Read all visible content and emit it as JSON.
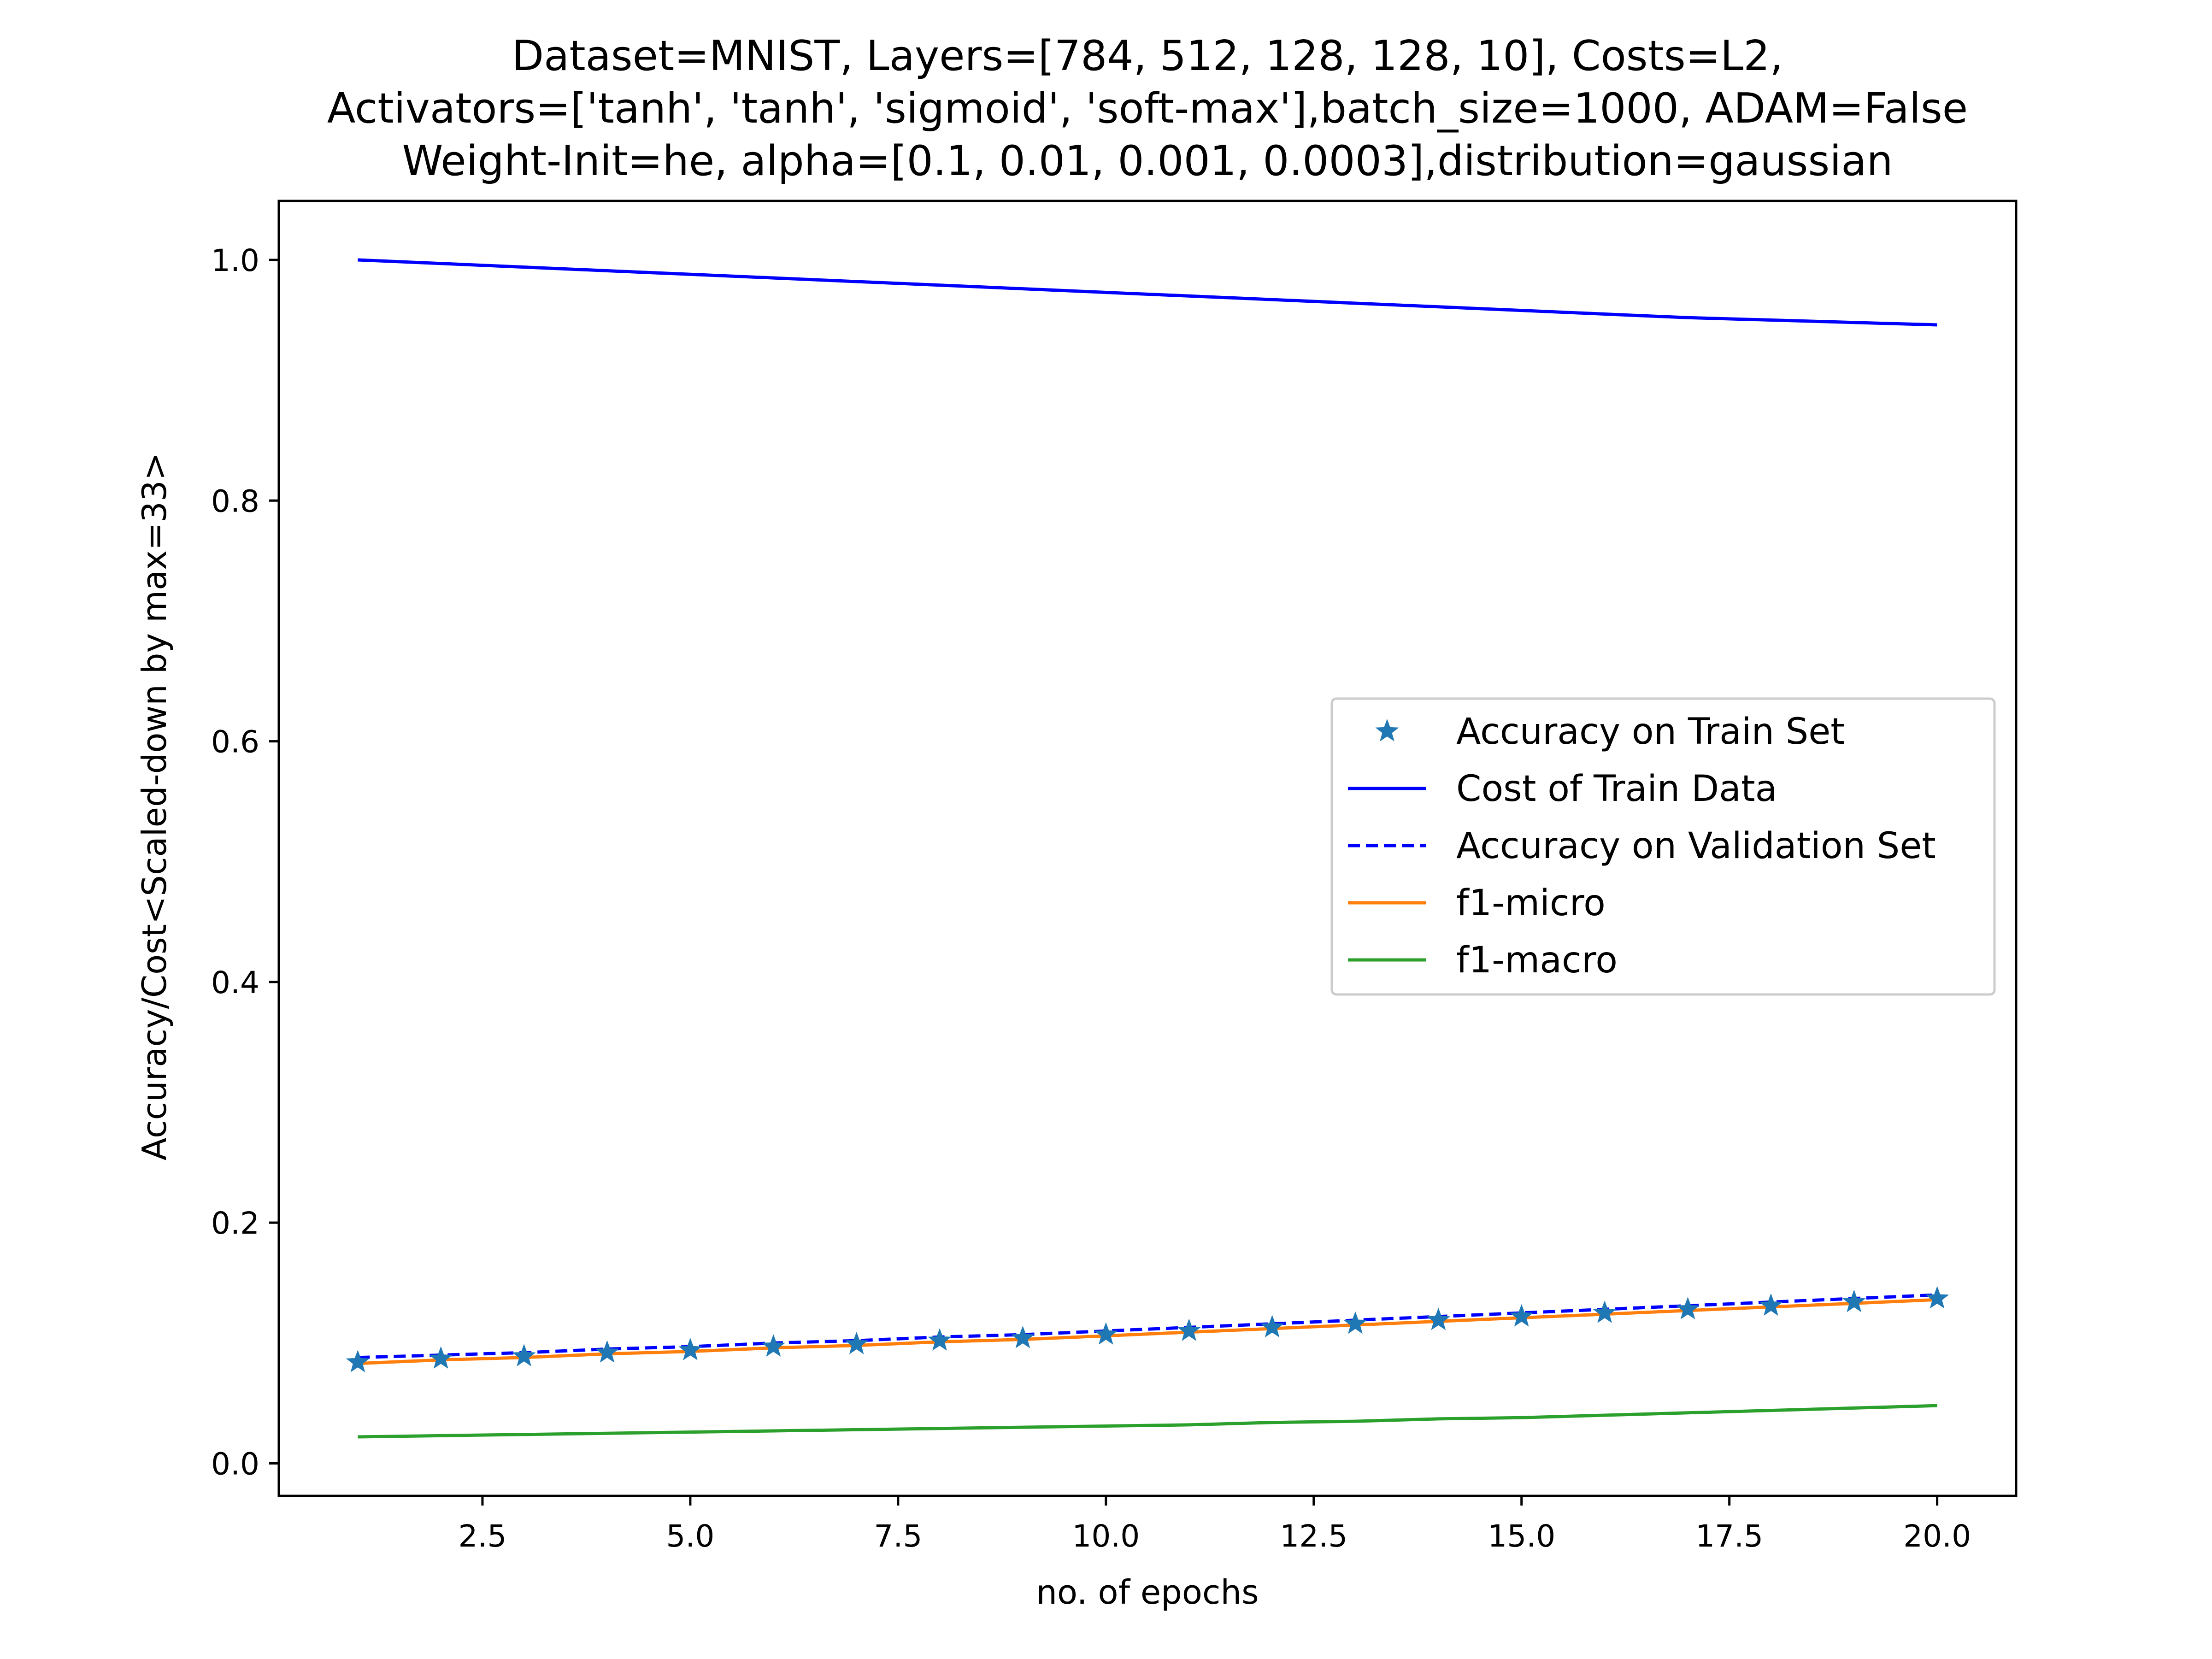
{
  "chart_data": {
    "type": "line",
    "title": [
      "Dataset=MNIST, Layers=[784, 512, 128, 128, 10], Costs=L2,",
      "Activators=['tanh', 'tanh', 'sigmoid', 'soft-max'],batch_size=1000, ADAM=False",
      "Weight-Init=he, alpha=[0.1, 0.01, 0.001, 0.0003],distribution=gaussian"
    ],
    "xlabel": "no. of epochs",
    "ylabel": "Accuracy/Cost<Scaled-down by max=33>",
    "xlim": [
      0.05,
      20.95
    ],
    "ylim": [
      -0.027,
      1.049
    ],
    "x_ticks": [
      2.5,
      5.0,
      7.5,
      10.0,
      12.5,
      15.0,
      17.5,
      20.0
    ],
    "x_tick_labels": [
      "2.5",
      "5.0",
      "7.5",
      "10.0",
      "12.5",
      "15.0",
      "17.5",
      "20.0"
    ],
    "y_ticks": [
      0.0,
      0.2,
      0.4,
      0.6,
      0.8,
      1.0
    ],
    "y_tick_labels": [
      "0.0",
      "0.2",
      "0.4",
      "0.6",
      "0.8",
      "1.0"
    ],
    "legend_position": "center-right",
    "x": [
      1,
      2,
      3,
      4,
      5,
      6,
      7,
      8,
      9,
      10,
      11,
      12,
      13,
      14,
      15,
      16,
      17,
      18,
      19,
      20
    ],
    "series": [
      {
        "name": "Accuracy on Train Set",
        "style": "star-markers",
        "color": "#1f77b4",
        "values": [
          0.084,
          0.087,
          0.089,
          0.092,
          0.094,
          0.097,
          0.099,
          0.102,
          0.104,
          0.107,
          0.11,
          0.113,
          0.116,
          0.119,
          0.122,
          0.125,
          0.128,
          0.131,
          0.134,
          0.137
        ]
      },
      {
        "name": "Cost of Train Data",
        "style": "solid",
        "color": "#0000ff",
        "values": [
          1.0,
          0.997,
          0.994,
          0.991,
          0.988,
          0.985,
          0.982,
          0.979,
          0.976,
          0.973,
          0.97,
          0.967,
          0.964,
          0.961,
          0.958,
          0.955,
          0.952,
          0.95,
          0.948,
          0.946
        ]
      },
      {
        "name": "Accuracy on Validation Set",
        "style": "dashed",
        "color": "#0000ff",
        "values": [
          0.088,
          0.09,
          0.092,
          0.095,
          0.097,
          0.1,
          0.102,
          0.105,
          0.107,
          0.11,
          0.113,
          0.116,
          0.119,
          0.122,
          0.125,
          0.128,
          0.131,
          0.134,
          0.137,
          0.14
        ]
      },
      {
        "name": "f1-micro",
        "style": "solid",
        "color": "#ff7f0e",
        "values": [
          0.083,
          0.086,
          0.088,
          0.091,
          0.093,
          0.096,
          0.098,
          0.101,
          0.103,
          0.106,
          0.109,
          0.112,
          0.115,
          0.118,
          0.121,
          0.124,
          0.127,
          0.13,
          0.133,
          0.136
        ]
      },
      {
        "name": "f1-macro",
        "style": "solid",
        "color": "#2ca02c",
        "values": [
          0.022,
          0.023,
          0.024,
          0.025,
          0.026,
          0.027,
          0.028,
          0.029,
          0.03,
          0.031,
          0.032,
          0.034,
          0.035,
          0.037,
          0.038,
          0.04,
          0.042,
          0.044,
          0.046,
          0.048
        ]
      }
    ]
  }
}
